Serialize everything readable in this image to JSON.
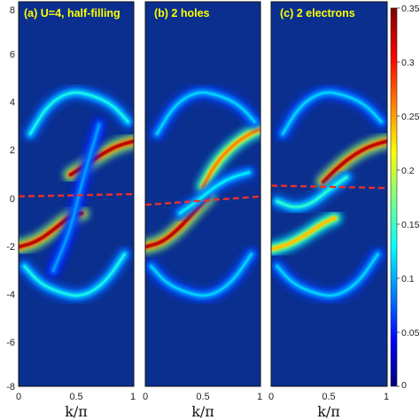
{
  "chart_data": [
    {
      "type": "heatmap",
      "title": "(a) U=4, half-filling",
      "xlabel": "k/π",
      "ylabel": "",
      "xlim": [
        0,
        1
      ],
      "ylim": [
        -8,
        8
      ],
      "x_ticks": [
        "0",
        "0.5",
        "1"
      ],
      "y_ticks": [
        "-8",
        "-6",
        "-4",
        "-2",
        "0",
        "2",
        "4",
        "6",
        "8"
      ],
      "dashed_line": {
        "y_at_k0": -0.1,
        "y_at_k1": 0.0,
        "color": "#e8302a"
      },
      "bands": [
        {
          "name": "upper-dominant",
          "points": [
            [
              0.45,
              0.8
            ],
            [
              0.55,
              1.1
            ],
            [
              0.7,
              1.6
            ],
            [
              0.85,
              2.0
            ],
            [
              1.0,
              2.2
            ]
          ],
          "intensity": 0.33
        },
        {
          "name": "lower-dominant",
          "points": [
            [
              0.0,
              -2.2
            ],
            [
              0.15,
              -2.0
            ],
            [
              0.3,
              -1.5
            ],
            [
              0.45,
              -0.9
            ],
            [
              0.55,
              -0.8
            ]
          ],
          "intensity": 0.33
        },
        {
          "name": "upper-shadow",
          "points": [
            [
              0.1,
              2.5
            ],
            [
              0.25,
              3.7
            ],
            [
              0.45,
              4.3
            ],
            [
              0.65,
              4.1
            ],
            [
              0.82,
              3.7
            ],
            [
              0.95,
              3.0
            ]
          ],
          "intensity": 0.14
        },
        {
          "name": "lower-shadow",
          "points": [
            [
              0.05,
              -3.0
            ],
            [
              0.18,
              -3.7
            ],
            [
              0.35,
              -4.1
            ],
            [
              0.55,
              -4.3
            ],
            [
              0.75,
              -3.7
            ],
            [
              0.92,
              -2.5
            ]
          ],
          "intensity": 0.14
        },
        {
          "name": "gap-ghost",
          "points": [
            [
              0.3,
              -3.2
            ],
            [
              0.45,
              -1.5
            ],
            [
              0.55,
              0.5
            ],
            [
              0.7,
              2.9
            ]
          ],
          "intensity": 0.1
        }
      ]
    },
    {
      "type": "heatmap",
      "title": "(b) 2 holes",
      "xlabel": "k/π",
      "ylabel": "",
      "xlim": [
        0,
        1
      ],
      "ylim": [
        -8,
        8
      ],
      "x_ticks": [
        "0",
        "0.5",
        "1"
      ],
      "dashed_line": {
        "y_at_k0": -0.45,
        "y_at_k1": -0.1,
        "color": "#e8302a"
      },
      "bands": [
        {
          "name": "lower-dominant",
          "points": [
            [
              0.0,
              -2.2
            ],
            [
              0.15,
              -2.0
            ],
            [
              0.3,
              -1.4
            ],
            [
              0.45,
              -0.6
            ],
            [
              0.55,
              -0.1
            ]
          ],
          "intensity": 0.33
        },
        {
          "name": "upper-dominant",
          "points": [
            [
              0.5,
              0.3
            ],
            [
              0.6,
              1.2
            ],
            [
              0.75,
              2.0
            ],
            [
              0.9,
              2.5
            ],
            [
              1.0,
              2.7
            ]
          ],
          "intensity": 0.26
        },
        {
          "name": "crossing-branch",
          "points": [
            [
              0.3,
              -0.8
            ],
            [
              0.45,
              -0.3
            ],
            [
              0.6,
              0.3
            ],
            [
              0.75,
              0.7
            ],
            [
              0.9,
              0.9
            ]
          ],
          "intensity": 0.13
        },
        {
          "name": "upper-shadow",
          "points": [
            [
              0.1,
              2.5
            ],
            [
              0.25,
              3.7
            ],
            [
              0.45,
              4.3
            ],
            [
              0.65,
              4.1
            ],
            [
              0.82,
              3.7
            ],
            [
              0.95,
              3.0
            ]
          ],
          "intensity": 0.12
        },
        {
          "name": "lower-shadow",
          "points": [
            [
              0.05,
              -3.0
            ],
            [
              0.18,
              -3.7
            ],
            [
              0.35,
              -4.1
            ],
            [
              0.55,
              -4.3
            ],
            [
              0.75,
              -3.7
            ],
            [
              0.92,
              -2.5
            ]
          ],
          "intensity": 0.12
        }
      ]
    },
    {
      "type": "heatmap",
      "title": "(c) 2 electrons",
      "xlabel": "k/π",
      "ylabel": "",
      "xlim": [
        0,
        1
      ],
      "ylim": [
        -8,
        8
      ],
      "x_ticks": [
        "0",
        "0.5",
        "1"
      ],
      "dashed_line": {
        "y_at_k0": 0.35,
        "y_at_k1": 0.25,
        "color": "#e8302a"
      },
      "bands": [
        {
          "name": "upper-dominant",
          "points": [
            [
              0.45,
              0.5
            ],
            [
              0.55,
              1.0
            ],
            [
              0.7,
              1.6
            ],
            [
              0.85,
              2.0
            ],
            [
              1.0,
              2.2
            ]
          ],
          "intensity": 0.33
        },
        {
          "name": "lower-dominant",
          "points": [
            [
              0.0,
              -2.3
            ],
            [
              0.15,
              -2.1
            ],
            [
              0.3,
              -1.7
            ],
            [
              0.45,
              -1.2
            ],
            [
              0.55,
              -1.0
            ]
          ],
          "intensity": 0.24
        },
        {
          "name": "crossing-branch",
          "points": [
            [
              0.05,
              -0.3
            ],
            [
              0.2,
              -0.6
            ],
            [
              0.35,
              -0.4
            ],
            [
              0.5,
              0.2
            ],
            [
              0.65,
              0.7
            ]
          ],
          "intensity": 0.15
        },
        {
          "name": "upper-shadow",
          "points": [
            [
              0.1,
              2.5
            ],
            [
              0.25,
              3.7
            ],
            [
              0.45,
              4.3
            ],
            [
              0.65,
              4.1
            ],
            [
              0.82,
              3.7
            ],
            [
              0.95,
              3.0
            ]
          ],
          "intensity": 0.12
        },
        {
          "name": "lower-shadow",
          "points": [
            [
              0.05,
              -3.0
            ],
            [
              0.18,
              -3.7
            ],
            [
              0.35,
              -4.1
            ],
            [
              0.55,
              -4.3
            ],
            [
              0.75,
              -3.7
            ],
            [
              0.92,
              -2.5
            ]
          ],
          "intensity": 0.12
        }
      ]
    }
  ],
  "colorbar": {
    "min": 0,
    "max": 0.35,
    "ticks": [
      "0",
      "0.05",
      "0.1",
      "0.15",
      "0.2",
      "0.25",
      "0.3",
      "0.35"
    ],
    "tick_values": [
      0,
      0.05,
      0.1,
      0.15,
      0.2,
      0.25,
      0.3,
      0.35
    ],
    "colormap": "jet",
    "background_color": "#0a2f8f"
  }
}
